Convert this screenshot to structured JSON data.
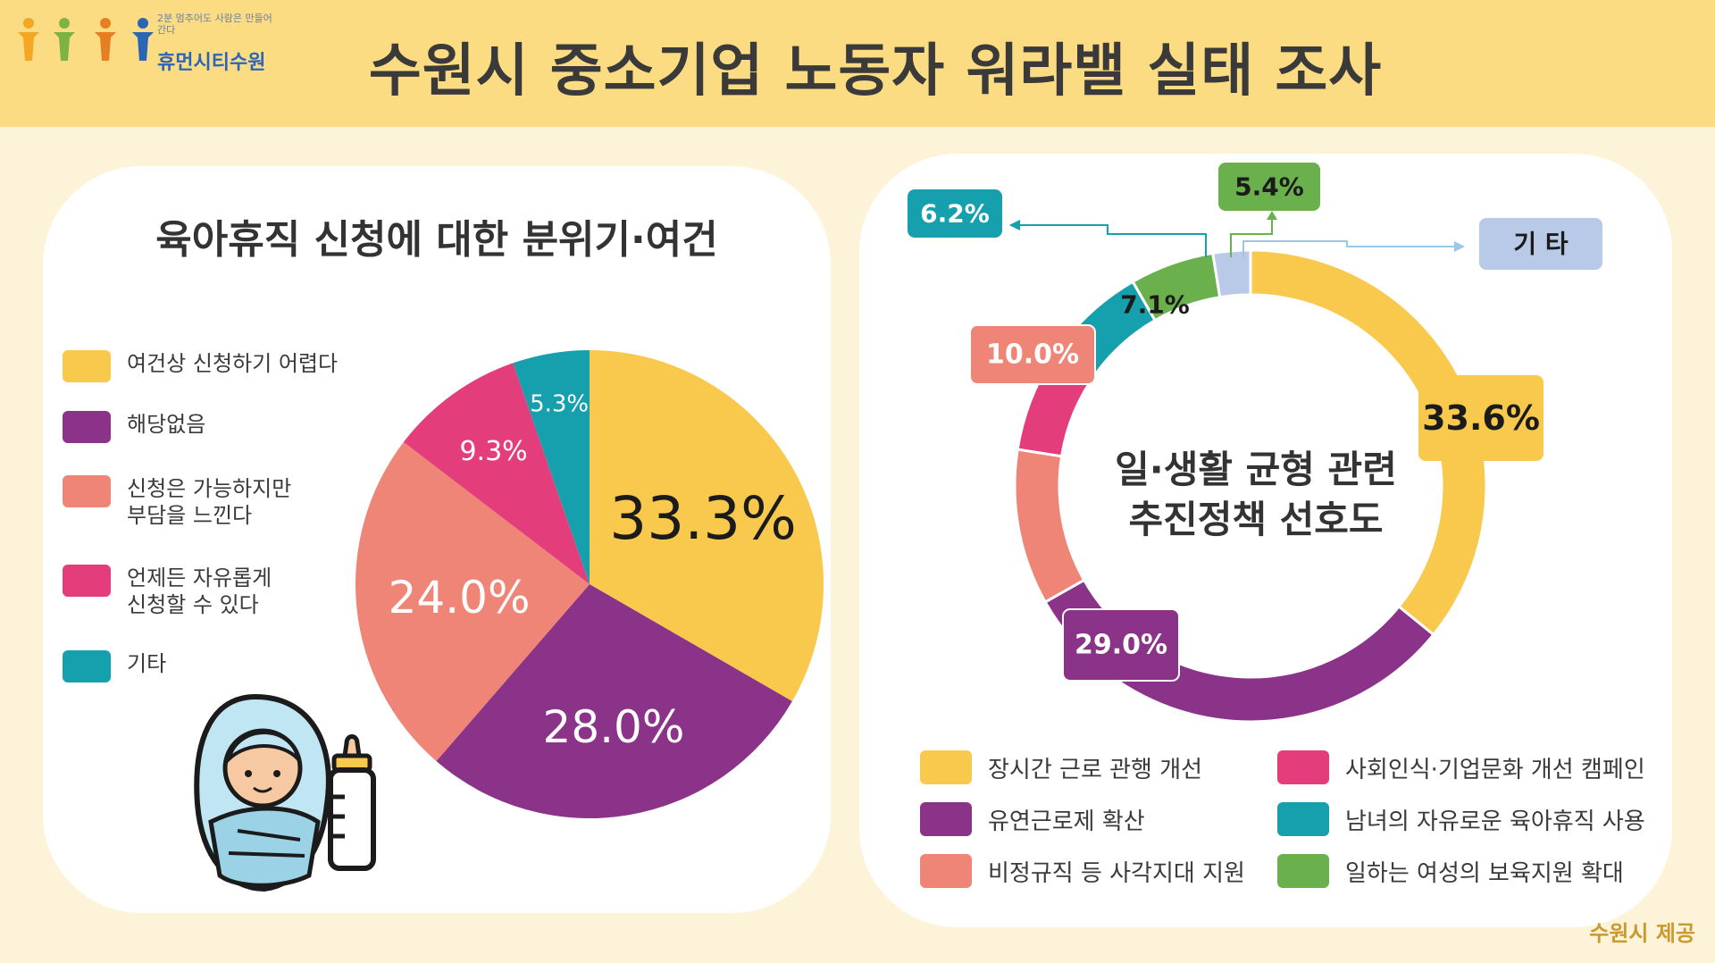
{
  "header": {
    "title": "수원시 중소기업 노동자 워라밸 실태 조사",
    "logo_text": "휴먼시티수원",
    "logo_small": "2분 멈추어도 사람은 만들어간다"
  },
  "left_chart_title": "육아휴직 신청에 대한 분위기·여건",
  "right_chart_title": "일·생활 균형 관련\n추진정책 선호도",
  "right_center_line1": "일·생활 균형 관련",
  "right_center_line2": "추진정책 선호도",
  "credit": "수원시 제공",
  "icons": [
    "logo-figures-icon",
    "baby-icon",
    "baby-bottle-icon"
  ],
  "chart_data": [
    {
      "type": "pie",
      "title": "육아휴직 신청에 대한 분위기·여건",
      "series": [
        {
          "name": "여건상 신청하기 어렵다",
          "value": 33.3,
          "label": "33.3%",
          "color": "#f8c94d"
        },
        {
          "name": "해당없음",
          "value": 28.0,
          "label": "28.0%",
          "color": "#8a3388"
        },
        {
          "name": "신청은 가능하지만\n부담을 느낀다",
          "value": 24.0,
          "label": "24.0%",
          "color": "#ee8577"
        },
        {
          "name": "언제든 자유롭게\n신청할 수 있다",
          "value": 9.3,
          "label": "9.3%",
          "color": "#e33d7c"
        },
        {
          "name": "기타",
          "value": 5.3,
          "label": "5.3%",
          "color": "#16a0ad"
        }
      ]
    },
    {
      "type": "pie",
      "title": "일·생활 균형 관련 추진정책 선호도",
      "donut": true,
      "series": [
        {
          "name": "장시간 근로 관행 개선",
          "value": 33.6,
          "label": "33.6%",
          "color": "#f8c94d"
        },
        {
          "name": "유연근로제 확산",
          "value": 29.0,
          "label": "29.0%",
          "color": "#8a3388"
        },
        {
          "name": "비정규직 등 사각지대 지원",
          "value": 10.0,
          "label": "10.0%",
          "color": "#ee8577"
        },
        {
          "name": "사회인식·기업문화 개선 캠페인",
          "value": 7.1,
          "label": "7.1%",
          "color": "#e33d7c"
        },
        {
          "name": "남녀의 자유로운 육아휴직 사용",
          "value": 6.2,
          "label": "6.2%",
          "color": "#16a0ad"
        },
        {
          "name": "일하는 여성의 보육지원 확대",
          "value": 5.4,
          "label": "5.4%",
          "color": "#6ab04c"
        },
        {
          "name": "기 타",
          "value": 2.4,
          "label": "기 타",
          "color": "#b9c9e8"
        }
      ]
    }
  ]
}
